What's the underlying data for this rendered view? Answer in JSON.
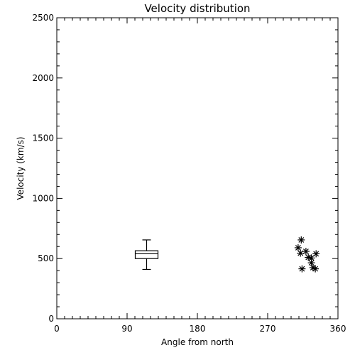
{
  "chart_data": {
    "type": "scatter",
    "title": "Velocity distribution",
    "xlabel": "Angle from north",
    "ylabel": "Velocity (km/s)",
    "xlim": [
      0,
      360
    ],
    "ylim": [
      0,
      2500
    ],
    "x_ticks": [
      0,
      90,
      180,
      270,
      360
    ],
    "y_ticks": [
      0,
      500,
      1000,
      1500,
      2000,
      2500
    ],
    "grid": false,
    "boxplot": {
      "x": 115,
      "min": 410,
      "q1": 500,
      "median": 540,
      "q3": 565,
      "max": 655
    },
    "points": [
      {
        "x": 309,
        "y": 590
      },
      {
        "x": 313,
        "y": 655
      },
      {
        "x": 312,
        "y": 545
      },
      {
        "x": 319,
        "y": 560
      },
      {
        "x": 322,
        "y": 510
      },
      {
        "x": 326,
        "y": 505
      },
      {
        "x": 332,
        "y": 540
      },
      {
        "x": 326,
        "y": 465
      },
      {
        "x": 314,
        "y": 415
      },
      {
        "x": 328,
        "y": 425
      },
      {
        "x": 331,
        "y": 415
      }
    ]
  }
}
